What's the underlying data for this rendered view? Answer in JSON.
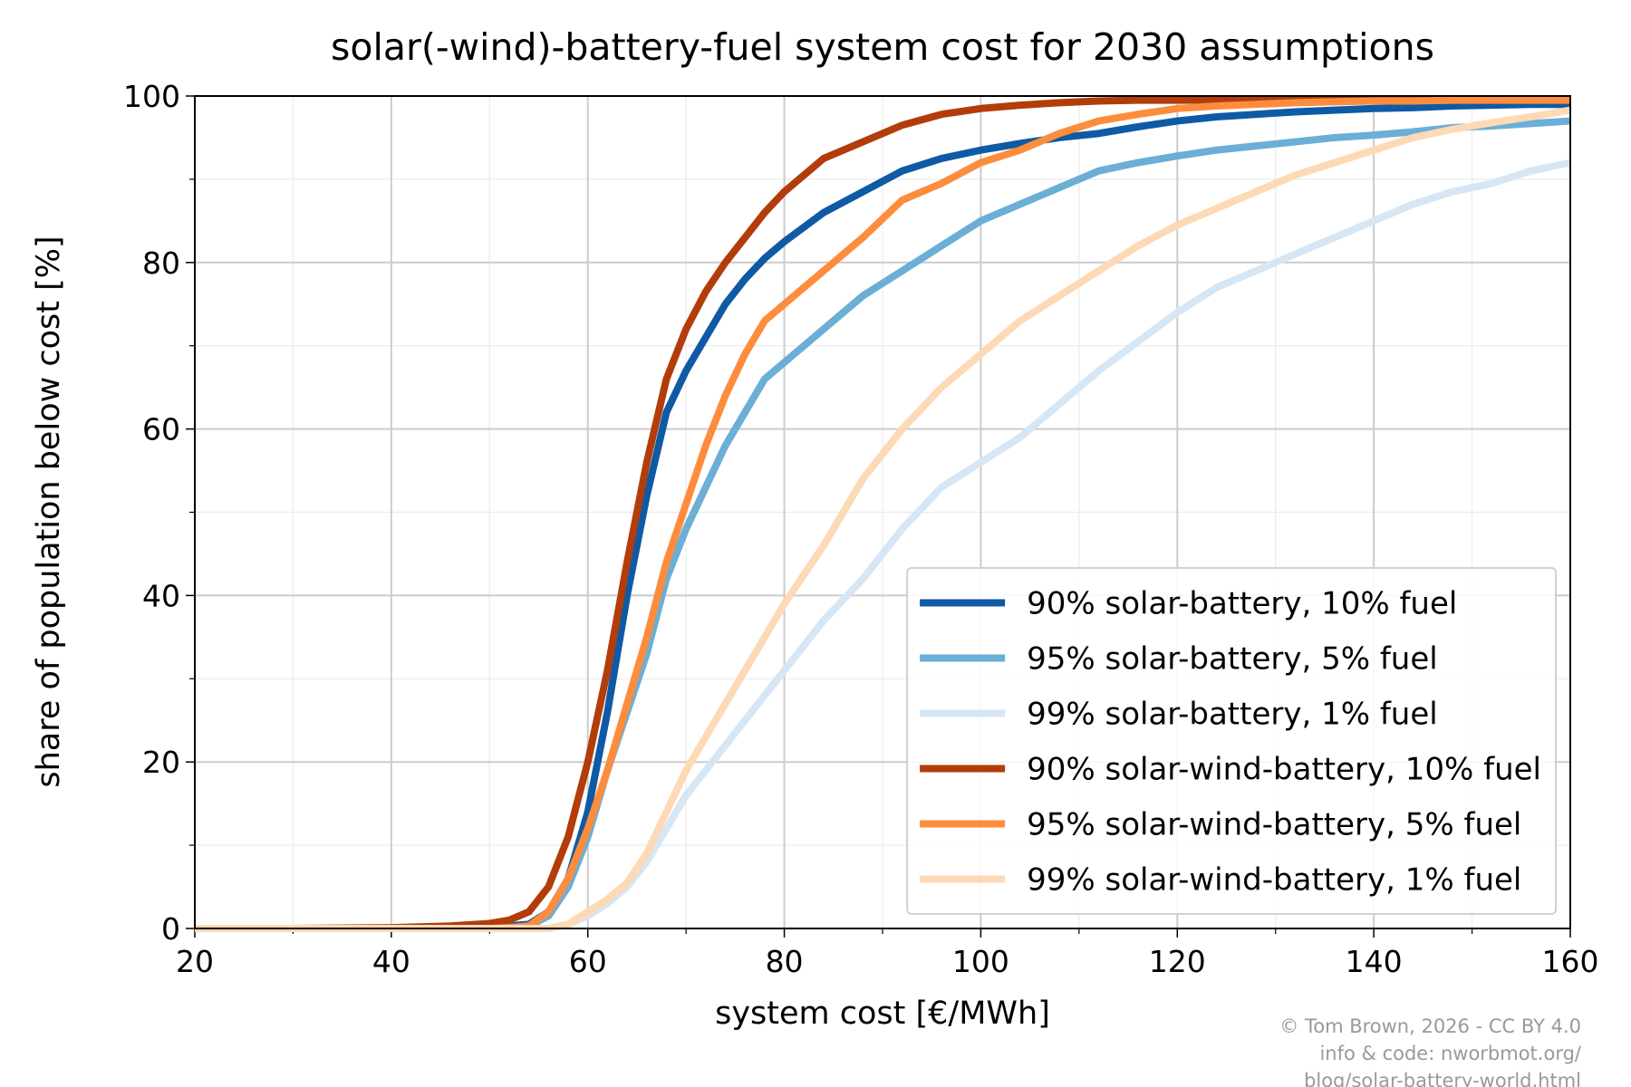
{
  "chart_data": {
    "type": "line",
    "title": "solar(-wind)-battery-fuel system cost for 2030 assumptions",
    "x_label": "system cost [€/MWh]",
    "y_label": "share of population below cost [%]",
    "x": [
      20,
      30,
      40,
      46,
      50,
      52,
      54,
      56,
      58,
      60,
      62,
      64,
      66,
      68,
      70,
      72,
      74,
      76,
      78,
      80,
      84,
      88,
      92,
      96,
      100,
      104,
      108,
      112,
      116,
      120,
      124,
      128,
      132,
      136,
      140,
      144,
      148,
      152,
      156,
      160
    ],
    "series": [
      {
        "name": "90% solar-battery, 10% fuel",
        "color": "#0f5aa5",
        "values": [
          0,
          0,
          0,
          0,
          0.2,
          0.3,
          0.5,
          2,
          6,
          14,
          26,
          40,
          52,
          62,
          67,
          71,
          75,
          78,
          80.5,
          82.5,
          86,
          88.5,
          91,
          92.5,
          93.5,
          94.3,
          95,
          95.5,
          96.3,
          97,
          97.5,
          97.8,
          98.1,
          98.3,
          98.5,
          98.6,
          98.8,
          98.9,
          99,
          99
        ]
      },
      {
        "name": "95% solar-battery, 5% fuel",
        "color": "#6baed6",
        "values": [
          0,
          0,
          0,
          0,
          0,
          0.1,
          0.3,
          1.5,
          5,
          11,
          19,
          26,
          33,
          42,
          48,
          53,
          58,
          62,
          66,
          68,
          72,
          76,
          79,
          82,
          85,
          87,
          89,
          91,
          92,
          92.8,
          93.5,
          94,
          94.5,
          95,
          95.3,
          95.7,
          96.2,
          96.4,
          96.7,
          97
        ]
      },
      {
        "name": "99% solar-battery, 1% fuel",
        "color": "#d6e6f4",
        "values": [
          0,
          0,
          0,
          0,
          0,
          0,
          0,
          0,
          0.5,
          1.5,
          3,
          5,
          8,
          12,
          16,
          19,
          22,
          25,
          28,
          31,
          37,
          42,
          48,
          53,
          56,
          59,
          63,
          67,
          70.5,
          74,
          77,
          79,
          81,
          83,
          85,
          87,
          88.5,
          89.5,
          91,
          92
        ]
      },
      {
        "name": "90% solar-wind-battery, 10% fuel",
        "color": "#b23d0a",
        "values": [
          0,
          0,
          0.1,
          0.3,
          0.6,
          1,
          2,
          5,
          11,
          20,
          31,
          44,
          56,
          66,
          72,
          76.5,
          80,
          83,
          86,
          88.5,
          92.5,
          94.5,
          96.5,
          97.8,
          98.5,
          98.9,
          99.2,
          99.4,
          99.5,
          99.5,
          99.5,
          99.5,
          99.5,
          99.5,
          99.5,
          99.5,
          99.5,
          99.5,
          99.5,
          99.6
        ]
      },
      {
        "name": "95% solar-wind-battery, 5% fuel",
        "color": "#fd8d3c",
        "values": [
          0,
          0,
          0,
          0,
          0,
          0.1,
          0.3,
          2,
          6,
          12,
          19,
          27,
          35,
          44,
          51,
          58,
          64,
          69,
          73,
          75,
          79,
          83,
          87.5,
          89.5,
          92,
          93.5,
          95.5,
          97,
          97.8,
          98.5,
          98.8,
          99,
          99.2,
          99.3,
          99.4,
          99.4,
          99.5,
          99.5,
          99.5,
          99.5
        ]
      },
      {
        "name": "99% solar-wind-battery, 1% fuel",
        "color": "#fdd9b5",
        "values": [
          0,
          0,
          0,
          0,
          0,
          0,
          0,
          0,
          0.5,
          2,
          3.5,
          5.5,
          9,
          14,
          19,
          23,
          27,
          31,
          35,
          39,
          46,
          54,
          60,
          65,
          69,
          73,
          76,
          79,
          82,
          84.5,
          86.5,
          88.5,
          90.5,
          92,
          93.5,
          95,
          96,
          96.8,
          97.5,
          98.3
        ]
      }
    ],
    "xlim": [
      20,
      160
    ],
    "ylim": [
      0,
      100
    ],
    "xticks": [
      20,
      40,
      60,
      80,
      100,
      120,
      140,
      160
    ],
    "yticks": [
      0,
      20,
      40,
      60,
      80,
      100
    ],
    "xticks_minor": [
      30,
      50,
      70,
      90,
      110,
      130,
      150
    ],
    "yticks_minor": [
      10,
      30,
      50,
      70,
      90
    ],
    "grid": true,
    "legend_loc": "lower right",
    "annotations": [
      "© Tom Brown, 2026 - CC BY 4.0",
      "info & code: nworbmot.org/",
      "blog/solar-battery-world.html"
    ]
  }
}
